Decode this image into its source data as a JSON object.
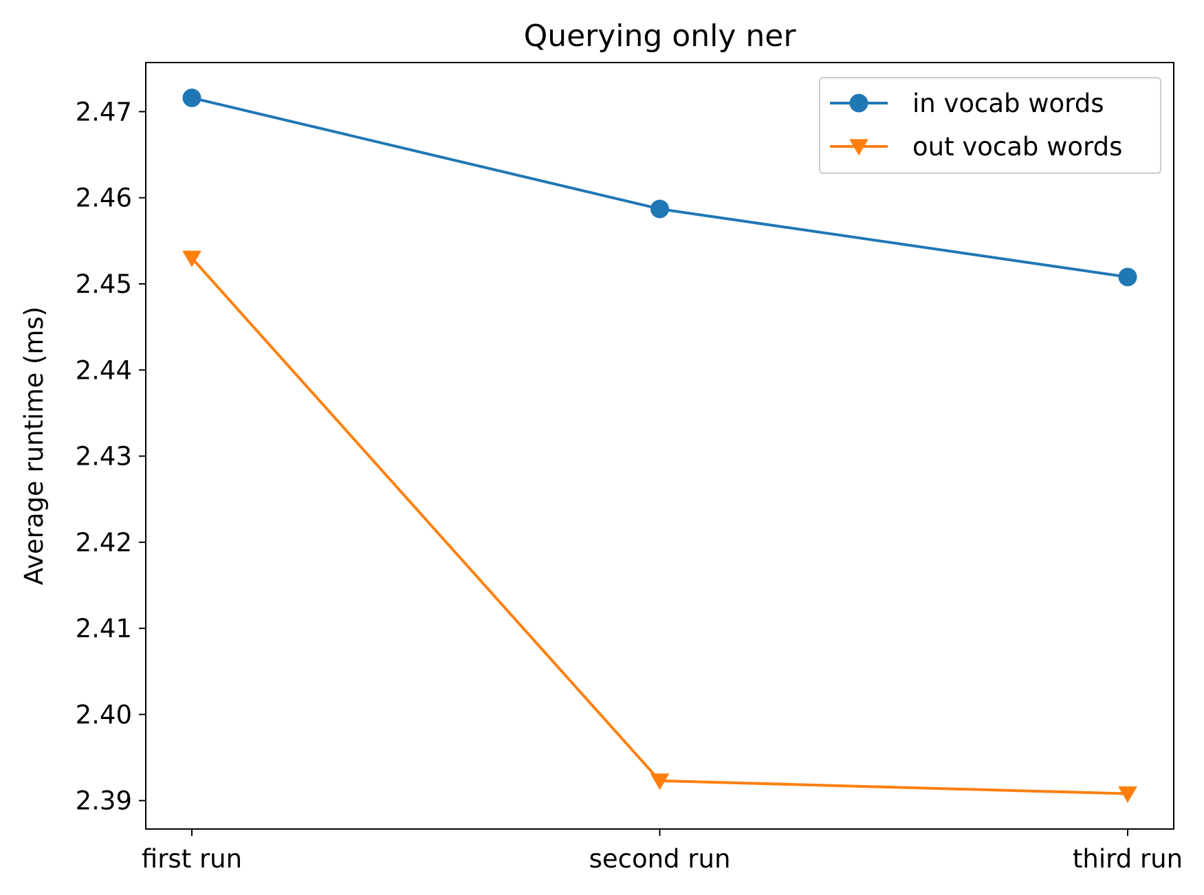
{
  "chart_data": {
    "type": "line",
    "title": "Querying only ner",
    "xlabel": "",
    "ylabel": "Average runtime (ms)",
    "categories": [
      "first run",
      "second run",
      "third run"
    ],
    "ylim": [
      2.3867,
      2.4757
    ],
    "yticks": [
      2.39,
      2.4,
      2.41,
      2.42,
      2.43,
      2.44,
      2.45,
      2.46,
      2.47
    ],
    "ytick_labels": [
      "2.39",
      "2.40",
      "2.41",
      "2.42",
      "2.43",
      "2.44",
      "2.45",
      "2.46",
      "2.47"
    ],
    "grid": false,
    "legend_position": "top-right",
    "series": [
      {
        "name": "in vocab words",
        "values": [
          2.4716,
          2.4587,
          2.4508
        ],
        "color": "#1f77b4",
        "marker": "circle"
      },
      {
        "name": "out vocab words",
        "values": [
          2.453,
          2.3923,
          2.3908
        ],
        "color": "#ff7f0e",
        "marker": "triangle-down"
      }
    ]
  }
}
